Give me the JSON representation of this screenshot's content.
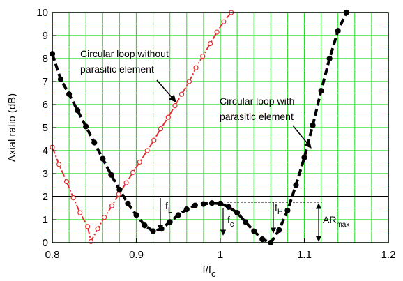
{
  "chart_data": {
    "type": "line",
    "y_label": "Axial ratio (dB)",
    "x_label": {
      "main": "f/f",
      "sub": "c"
    },
    "xlim": [
      0.8,
      1.2
    ],
    "xticks": [
      0.8,
      0.9,
      1,
      1.1,
      1.2
    ],
    "ylim": [
      0,
      10
    ],
    "yticks": [
      0,
      1,
      2,
      3,
      4,
      5,
      6,
      7,
      8,
      9,
      10
    ],
    "grid": true,
    "grid_color": "#22dd22",
    "reference_line": 2,
    "series": [
      {
        "color": "#e03030",
        "marker": "open",
        "x": [
          0.8,
          0.808,
          0.817,
          0.825,
          0.833,
          0.842,
          0.846,
          0.854,
          0.862,
          0.871,
          0.879,
          0.888,
          0.896,
          0.904,
          0.913,
          0.921,
          0.929,
          0.938,
          0.946,
          0.954,
          0.963,
          0.971,
          0.979,
          0.988,
          0.996,
          1.004,
          1.013
        ],
        "values": [
          4.15,
          3.4,
          2.65,
          1.95,
          1.3,
          0.7,
          0.05,
          0.6,
          1.1,
          1.6,
          2.1,
          2.6,
          3.05,
          3.5,
          4.0,
          4.45,
          4.95,
          5.45,
          5.95,
          6.45,
          7.0,
          7.6,
          8.1,
          8.65,
          9.15,
          9.6,
          10.0
        ]
      },
      {
        "color": "#000000",
        "marker": "filled",
        "x": [
          0.8,
          0.81,
          0.82,
          0.83,
          0.84,
          0.85,
          0.86,
          0.87,
          0.88,
          0.89,
          0.9,
          0.91,
          0.92,
          0.93,
          0.94,
          0.95,
          0.96,
          0.97,
          0.98,
          0.99,
          1.0,
          1.01,
          1.02,
          1.03,
          1.04,
          1.05,
          1.06,
          1.07,
          1.08,
          1.09,
          1.1,
          1.11,
          1.12,
          1.13,
          1.14,
          1.15
        ],
        "values": [
          8.2,
          7.1,
          6.45,
          5.75,
          5.05,
          4.35,
          3.65,
          2.95,
          2.3,
          1.7,
          1.2,
          0.75,
          0.5,
          0.6,
          0.9,
          1.2,
          1.45,
          1.62,
          1.68,
          1.72,
          1.7,
          1.55,
          1.3,
          0.9,
          0.5,
          0.15,
          0.0,
          0.55,
          1.4,
          2.5,
          3.7,
          5.1,
          6.6,
          8.0,
          9.2,
          10.0
        ]
      }
    ],
    "annotations": [
      {
        "lines": [
          "Circular loop without",
          "parasitic element"
        ]
      },
      {
        "lines": [
          "Circular loop with",
          "parasitic element"
        ]
      },
      {
        "main": "f",
        "sub": "L"
      },
      {
        "main": "f",
        "sub": "c"
      },
      {
        "main": "f",
        "sub": "H"
      },
      {
        "main": "AR",
        "sub": "max"
      }
    ]
  }
}
